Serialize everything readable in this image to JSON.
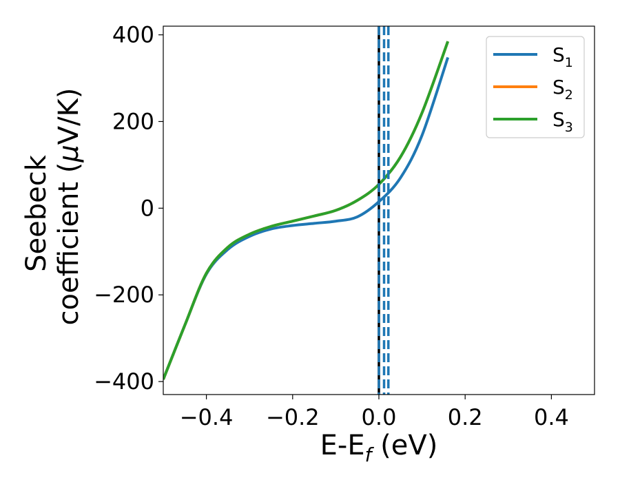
{
  "chart_data": {
    "type": "line",
    "xlabel": {
      "main": "E-E",
      "sub": "f",
      "tail": " (eV)"
    },
    "ylabel": {
      "line1": "Seebeck",
      "line2_prefix": "coefficient  (",
      "mu": "μ",
      "line2_suffix": "V/K)"
    },
    "xlim": [
      -0.5,
      0.5
    ],
    "ylim": [
      -430,
      420
    ],
    "xticks": [
      -0.4,
      -0.2,
      0.0,
      0.2,
      0.4
    ],
    "xtick_labels": [
      "−0.4",
      "−0.2",
      "0.0",
      "0.2",
      "0.4"
    ],
    "yticks": [
      -400,
      -200,
      0,
      200,
      400
    ],
    "ytick_labels": [
      "−400",
      "−200",
      "0",
      "200",
      "400"
    ],
    "grid": false,
    "legend_position": "top-right",
    "series": [
      {
        "name": "S",
        "sub": "1",
        "color": "#1f77b4",
        "x": [
          -0.5,
          -0.45,
          -0.4,
          -0.35,
          -0.3,
          -0.25,
          -0.2,
          -0.15,
          -0.1,
          -0.05,
          0.0,
          0.05,
          0.1,
          0.16
        ],
        "y": [
          -395,
          -270,
          -152,
          -95,
          -65,
          -48,
          -40,
          -35,
          -30,
          -20,
          15,
          70,
          168,
          348
        ]
      },
      {
        "name": "S",
        "sub": "2",
        "color": "#ff7f0e",
        "x": [
          -0.5,
          -0.45,
          -0.4,
          -0.35,
          -0.3,
          -0.25,
          -0.2,
          -0.15,
          -0.1,
          -0.05,
          0.0,
          0.05,
          0.1,
          0.16
        ],
        "y": [
          -395,
          -270,
          -150,
          -90,
          -60,
          -42,
          -30,
          -18,
          -5,
          18,
          55,
          118,
          220,
          385
        ]
      },
      {
        "name": "S",
        "sub": "3",
        "color": "#2ca02c",
        "x": [
          -0.5,
          -0.45,
          -0.4,
          -0.35,
          -0.3,
          -0.25,
          -0.2,
          -0.15,
          -0.1,
          -0.05,
          0.0,
          0.05,
          0.1,
          0.16
        ],
        "y": [
          -395,
          -270,
          -150,
          -90,
          -60,
          -42,
          -30,
          -18,
          -5,
          18,
          55,
          118,
          220,
          385
        ]
      }
    ],
    "vlines": [
      {
        "x": 0.0,
        "color": "#000000",
        "style": "solid"
      },
      {
        "x": 0.0,
        "color": "#1f77b4",
        "style": "dashed"
      },
      {
        "x": 0.012,
        "color": "#1f77b4",
        "style": "dashed"
      },
      {
        "x": 0.022,
        "color": "#1f77b4",
        "style": "dashed"
      }
    ]
  }
}
